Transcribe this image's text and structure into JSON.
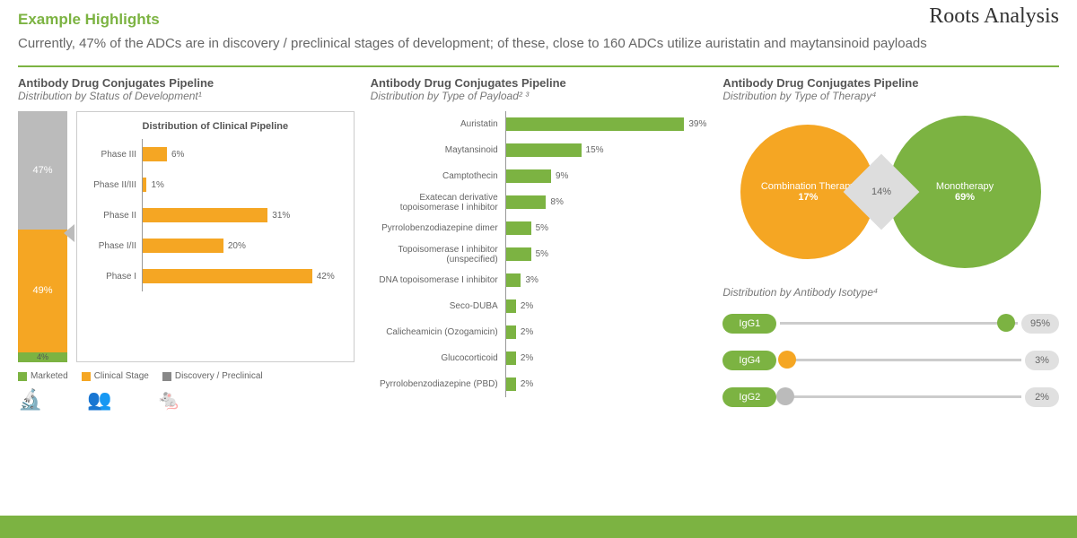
{
  "header": {
    "example_title": "Example Highlights",
    "subtitle": "Currently, 47% of the ADCs are in discovery / preclinical stages of development; of these, close to 160 ADCs utilize auristatin and maytansinoid payloads",
    "brand": "Roots Analysis"
  },
  "colors": {
    "green": "#7cb342",
    "orange": "#f5a623",
    "grey": "#bbbbbb",
    "light_grey": "#dddddd"
  },
  "panel1": {
    "title": "Antibody Drug Conjugates Pipeline",
    "subtitle": "Distribution by Status of Development¹",
    "stacked": [
      {
        "label": "47%",
        "pct": 47,
        "color": "#bbbbbb"
      },
      {
        "label": "49%",
        "pct": 49,
        "color": "#f5a623"
      },
      {
        "label": "4%",
        "pct": 4,
        "color": "#7cb342"
      }
    ],
    "clinical_title": "Distribution of Clinical Pipeline",
    "clinical": [
      {
        "label": "Phase III",
        "pct": 6
      },
      {
        "label": "Phase II/III",
        "pct": 1
      },
      {
        "label": "Phase II",
        "pct": 31
      },
      {
        "label": "Phase I/II",
        "pct": 20
      },
      {
        "label": "Phase I",
        "pct": 42
      }
    ],
    "clinical_max": 50,
    "legend": [
      {
        "label": "Marketed",
        "color": "#7cb342"
      },
      {
        "label": "Clinical Stage",
        "color": "#f5a623"
      },
      {
        "label": "Discovery / Preclinical",
        "color": "#888888"
      }
    ]
  },
  "panel2": {
    "title": "Antibody Drug Conjugates Pipeline",
    "subtitle": "Distribution by Type of Payload² ³",
    "max": 40,
    "bars": [
      {
        "label": "Auristatin",
        "pct": 39
      },
      {
        "label": "Maytansinoid",
        "pct": 15
      },
      {
        "label": "Camptothecin",
        "pct": 9
      },
      {
        "label": "Exatecan derivative topoisomerase I inhibitor",
        "pct": 8
      },
      {
        "label": "Pyrrolobenzodiazepine dimer",
        "pct": 5
      },
      {
        "label": "Topoisomerase I inhibitor (unspecified)",
        "pct": 5
      },
      {
        "label": "DNA topoisomerase I inhibitor",
        "pct": 3
      },
      {
        "label": "Seco-DUBA",
        "pct": 2
      },
      {
        "label": "Calicheamicin (Ozogamicin)",
        "pct": 2
      },
      {
        "label": "Glucocorticoid",
        "pct": 2
      },
      {
        "label": "Pyrrolobenzodiazepine (PBD)",
        "pct": 2
      }
    ]
  },
  "panel3": {
    "title": "Antibody Drug Conjugates Pipeline",
    "subtitle_a": "Distribution by Type of Therapy⁴",
    "venn": {
      "left": {
        "label": "Combination Therapy",
        "value": "17%",
        "color": "#f5a623"
      },
      "right": {
        "label": "Monotherapy",
        "value": "69%",
        "color": "#7cb342"
      },
      "overlap": "14%"
    },
    "subtitle_b": "Distribution by Antibody Isotype⁴",
    "isotypes": [
      {
        "name": "IgG1",
        "pct": 95,
        "dot_color": "#7cb342"
      },
      {
        "name": "IgG4",
        "pct": 3,
        "dot_color": "#f5a623"
      },
      {
        "name": "IgG2",
        "pct": 2,
        "dot_color": "#bbbbbb"
      }
    ]
  }
}
